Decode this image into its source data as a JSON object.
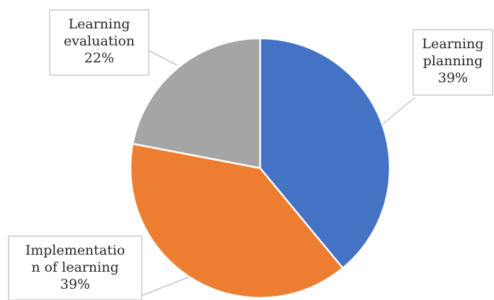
{
  "chart_data": {
    "type": "pie",
    "title": "",
    "slices": [
      {
        "lines": [
          "Learning",
          "planning"
        ],
        "percent_label": "39%",
        "value": 39,
        "color": "#4472C4"
      },
      {
        "lines": [
          "Implementatio",
          "n of learning"
        ],
        "percent_label": "39%",
        "value": 39,
        "color": "#ED7D31"
      },
      {
        "lines": [
          "Learning",
          "evaluation"
        ],
        "percent_label": "22%",
        "value": 22,
        "color": "#A5A5A5"
      }
    ],
    "legend": "none"
  }
}
